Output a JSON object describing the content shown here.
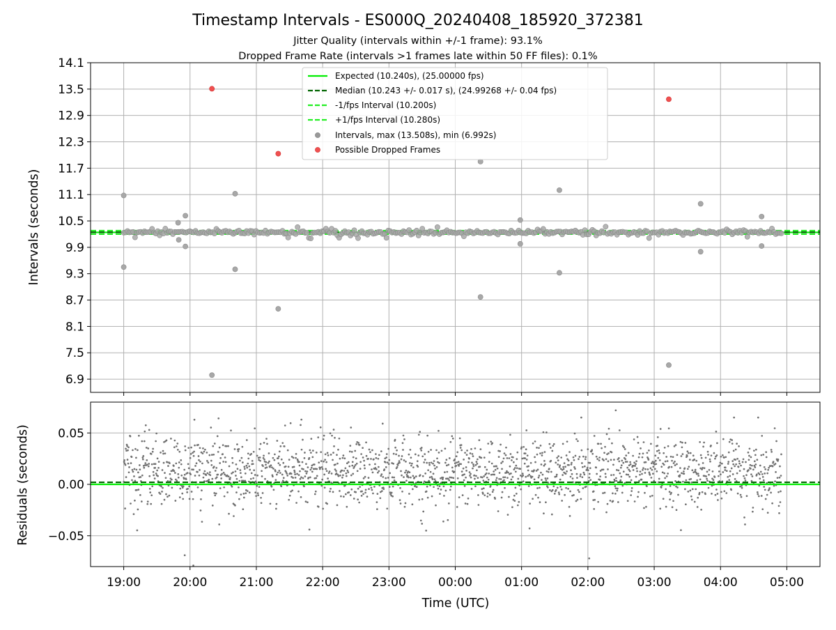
{
  "chart_data": {
    "type": "scatter",
    "title": "Timestamp Intervals - ES000Q_20240408_185920_372381",
    "subtitle_1": "Jitter Quality (intervals within +/-1 frame): 93.1%",
    "subtitle_2": "Dropped Frame Rate (intervals >1 frames late within 50 FF files): 0.1%",
    "xlabel": "Time (UTC)",
    "x_ticks": [
      "19:00",
      "20:00",
      "21:00",
      "22:00",
      "23:00",
      "00:00",
      "01:00",
      "02:00",
      "03:00",
      "04:00",
      "05:00"
    ],
    "x_range_hours": [
      18.5,
      29.5
    ],
    "grid": true,
    "top_panel": {
      "ylabel": "Intervals (seconds)",
      "ylim": [
        6.6,
        14.1
      ],
      "y_ticks": [
        "6.9",
        "7.5",
        "8.1",
        "8.7",
        "9.3",
        "9.9",
        "10.5",
        "11.1",
        "11.7",
        "12.3",
        "12.9",
        "13.5",
        "14.1"
      ],
      "expected": 10.24,
      "median": 10.243,
      "lower_interval": 10.2,
      "upper_interval": 10.28,
      "legend_position": "top-center",
      "legend": [
        {
          "label": "Expected (10.240s), (25.00000 fps)",
          "style": "solid",
          "color": "#00ee00"
        },
        {
          "label": "Median (10.243 +/- 0.017 s), (24.99268 +/- 0.04 fps)",
          "style": "dashed",
          "color": "#006400"
        },
        {
          "label": "-1/fps Interval (10.200s)",
          "style": "dashed",
          "color": "#22ee22"
        },
        {
          "label": "+1/fps Interval (10.280s)",
          "style": "dashed",
          "color": "#22ee22"
        },
        {
          "label": "Intervals, max (13.508s), min (6.992s)",
          "style": "marker",
          "color": "#999999"
        },
        {
          "label": "Possible Dropped Frames",
          "style": "marker",
          "color": "#f05050"
        }
      ],
      "dropped_frames": [
        {
          "t": 20.33,
          "v": 13.508
        },
        {
          "t": 21.33,
          "v": 12.03
        },
        {
          "t": 27.22,
          "v": 13.27
        }
      ],
      "outliers": [
        {
          "t": 19.0,
          "v": 11.08
        },
        {
          "t": 19.0,
          "v": 9.45
        },
        {
          "t": 19.93,
          "v": 10.62
        },
        {
          "t": 19.93,
          "v": 9.92
        },
        {
          "t": 19.83,
          "v": 10.07
        },
        {
          "t": 19.82,
          "v": 10.46
        },
        {
          "t": 20.33,
          "v": 6.992
        },
        {
          "t": 20.68,
          "v": 11.12
        },
        {
          "t": 20.68,
          "v": 9.4
        },
        {
          "t": 21.33,
          "v": 8.5
        },
        {
          "t": 24.38,
          "v": 11.85
        },
        {
          "t": 24.38,
          "v": 8.77
        },
        {
          "t": 24.98,
          "v": 10.52
        },
        {
          "t": 24.98,
          "v": 9.98
        },
        {
          "t": 25.57,
          "v": 11.2
        },
        {
          "t": 25.57,
          "v": 9.32
        },
        {
          "t": 27.22,
          "v": 7.22
        },
        {
          "t": 27.7,
          "v": 10.89
        },
        {
          "t": 27.7,
          "v": 9.8
        },
        {
          "t": 28.62,
          "v": 10.6
        },
        {
          "t": 28.62,
          "v": 9.93
        }
      ],
      "time_span_hours": [
        19.0,
        28.92
      ]
    },
    "bottom_panel": {
      "ylabel": "Residuals (seconds)",
      "ylim": [
        -0.08,
        0.08
      ],
      "y_ticks": [
        "−0.05",
        "0.00",
        "0.05"
      ],
      "y_tick_values": [
        -0.05,
        0.0,
        0.05
      ],
      "zero_line": 0.0,
      "median_line": 0.002,
      "scatter_color": "#707070",
      "residual_range": [
        -0.045,
        0.065
      ],
      "extreme_points": [
        {
          "t": 19.92,
          "v": -0.069
        },
        {
          "t": 20.05,
          "v": -0.079
        },
        {
          "t": 21.8,
          "v": -0.044
        },
        {
          "t": 26.02,
          "v": -0.072
        },
        {
          "t": 26.42,
          "v": 0.072
        },
        {
          "t": 21.68,
          "v": 0.063
        },
        {
          "t": 28.37,
          "v": -0.039
        }
      ]
    }
  }
}
